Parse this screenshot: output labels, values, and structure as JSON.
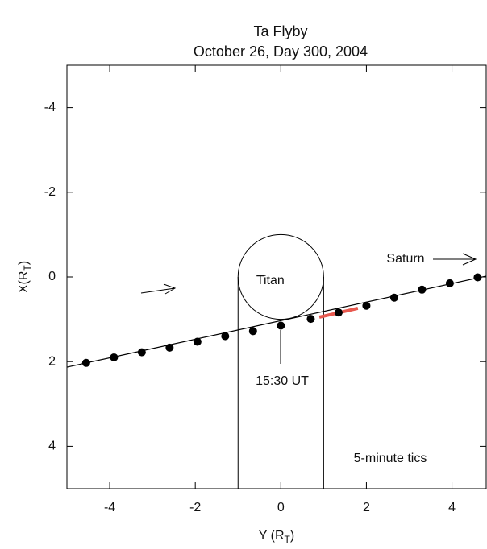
{
  "chart_data": {
    "type": "scatter",
    "title": "Ta Flyby",
    "subtitle": "October 26, Day 300, 2004",
    "xlabel": [
      "Y (R",
      "T",
      ")"
    ],
    "ylabel": [
      "X(R",
      "T",
      ")"
    ],
    "xlim": [
      -5,
      4.8
    ],
    "ylim": [
      5,
      -5
    ],
    "xticks": [
      -4,
      -2,
      0,
      2,
      4
    ],
    "yticks": [
      4,
      2,
      0,
      -2,
      -4
    ],
    "titan": {
      "label": "Titan",
      "center": [
        0,
        0
      ],
      "radius": 1
    },
    "series": [
      {
        "mode": "line",
        "color": "#000000",
        "x": [
          -5,
          4.8
        ],
        "values": [
          2.13,
          -0.02
        ]
      },
      {
        "mode": "line",
        "color": "#e8594f",
        "x": [
          0.9,
          1.8
        ],
        "values": [
          0.95,
          0.74
        ]
      },
      {
        "mode": "markers",
        "color": "#000000",
        "x": [
          -4.55,
          -3.9,
          -3.25,
          -2.6,
          -1.95,
          -1.3,
          -0.65,
          0,
          0.7,
          1.35,
          2,
          2.65,
          3.3,
          3.95,
          4.6
        ],
        "values": [
          2.03,
          1.9,
          1.78,
          1.67,
          1.53,
          1.4,
          1.28,
          1.15,
          0.99,
          0.84,
          0.68,
          0.49,
          0.3,
          0.15,
          0.01
        ]
      }
    ],
    "annotations": [
      "Saturn",
      "15:30 UT",
      "5-minute tics"
    ]
  }
}
